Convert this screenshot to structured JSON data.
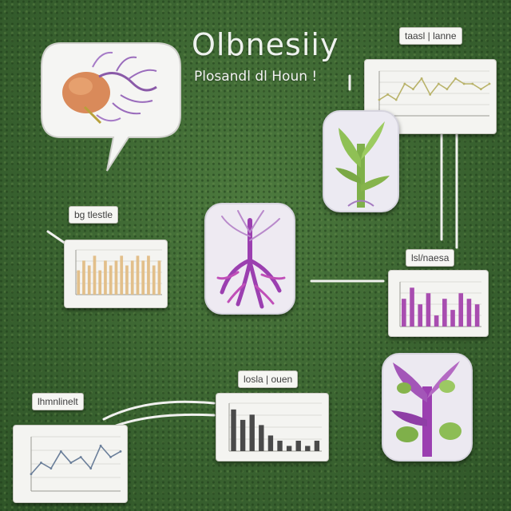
{
  "header": {
    "title": "Olbnesiiy",
    "subtitle": "Plosandl dl  Houn !"
  },
  "labels": {
    "top_right": "taasl | lanne",
    "left_mid": "bg tlestle",
    "right_mid": "lsl/naesa",
    "bottom_mid": "losla | ouen",
    "bottom_left": "lhmnlinelt"
  },
  "chart_data": [
    {
      "type": "line",
      "title": "",
      "series": [
        {
          "values": [
            3,
            4,
            3,
            6,
            5,
            7,
            4,
            6,
            5,
            7,
            6,
            6,
            5,
            6
          ]
        }
      ]
    },
    {
      "type": "bar",
      "title": "",
      "values": [
        5,
        7,
        6,
        8,
        5,
        7,
        6,
        7,
        8,
        6,
        7,
        8,
        7,
        8,
        6,
        7
      ]
    },
    {
      "type": "bar",
      "title": "",
      "values": [
        5,
        7,
        4,
        6,
        2,
        5,
        3,
        6,
        5,
        4
      ]
    },
    {
      "type": "bar",
      "title": "",
      "values": [
        8,
        6,
        7,
        5,
        3,
        2,
        1,
        2,
        1,
        2
      ]
    },
    {
      "type": "line",
      "title": "",
      "series": [
        {
          "values": [
            3,
            5,
            4,
            7,
            5,
            6,
            4,
            8,
            6,
            7
          ]
        }
      ]
    }
  ],
  "colors": {
    "background": "#3f6a33",
    "card": "#f4f4f1",
    "bar_tan": "#e2bf8a",
    "bar_purple": "#a84db0",
    "plant_purple": "#9b3fb0",
    "plant_green": "#7fb04a"
  }
}
